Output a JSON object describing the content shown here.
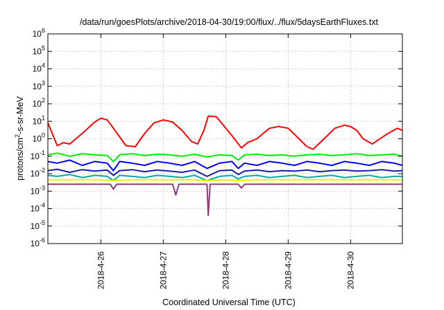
{
  "chart_data": {
    "type": "line",
    "title": "/data/run/goesPlots/archive/2018-04-30/19:00/flux/../flux/5daysEarthFluxes.txt",
    "xlabel": "Coordinated Universal Time (UTC)",
    "ylabel": {
      "prefix": "protons/cm",
      "superscript": "2",
      "suffix": "-s-sr-MeV"
    },
    "y_scale": "log",
    "ylim": [
      1e-06,
      1000000.0
    ],
    "y_ticks": [
      {
        "value": 1e-06,
        "base": "10",
        "exp": "-6"
      },
      {
        "value": 1e-05,
        "base": "10",
        "exp": "-5"
      },
      {
        "value": 0.0001,
        "base": "10",
        "exp": "-4"
      },
      {
        "value": 0.001,
        "base": "10",
        "exp": "-3"
      },
      {
        "value": 0.01,
        "base": "10",
        "exp": "-2"
      },
      {
        "value": 0.1,
        "base": "10",
        "exp": "-1"
      },
      {
        "value": 1,
        "base": "10",
        "exp": "0"
      },
      {
        "value": 10,
        "base": "10",
        "exp": "1"
      },
      {
        "value": 100,
        "base": "10",
        "exp": "2"
      },
      {
        "value": 1000,
        "base": "10",
        "exp": "3"
      },
      {
        "value": 10000,
        "base": "10",
        "exp": "4"
      },
      {
        "value": 100000,
        "base": "10",
        "exp": "5"
      },
      {
        "value": 1000000,
        "base": "10",
        "exp": "6"
      }
    ],
    "x_ticks": [
      "2018-4-26",
      "2018-4-27",
      "2018-4-28",
      "2018-4-29",
      "2018-4-30"
    ],
    "x_tick_days": [
      26,
      27,
      28,
      29,
      30
    ],
    "xlim_days": [
      25.15,
      30.83
    ],
    "grid": true,
    "legend": "none",
    "series": [
      {
        "color": "#ff0000",
        "x": [
          25.15,
          25.3,
          25.4,
          25.5,
          25.7,
          25.9,
          26.0,
          26.1,
          26.2,
          26.4,
          26.55,
          26.7,
          26.85,
          27.0,
          27.15,
          27.3,
          27.45,
          27.55,
          27.65,
          27.72,
          27.85,
          28.0,
          28.1,
          28.25,
          28.35,
          28.5,
          28.7,
          28.85,
          29.0,
          29.15,
          29.3,
          29.4,
          29.55,
          29.75,
          29.9,
          30.0,
          30.1,
          30.2,
          30.35,
          30.45,
          30.6,
          30.75,
          30.83
        ],
        "y": [
          8,
          0.4,
          0.6,
          0.5,
          2,
          9,
          15,
          12,
          4,
          0.4,
          0.35,
          2,
          8,
          12,
          9,
          3,
          0.7,
          0.5,
          3,
          20,
          18,
          4,
          1.5,
          0.3,
          0.6,
          1,
          4,
          5,
          4,
          1.2,
          0.35,
          0.25,
          0.8,
          4,
          6,
          5,
          3,
          1,
          0.5,
          0.9,
          2,
          4,
          3
        ]
      },
      {
        "color": "#00ee00",
        "x": [
          25.15,
          25.3,
          25.5,
          25.7,
          25.9,
          26.1,
          26.2,
          26.3,
          26.5,
          26.7,
          26.9,
          27.1,
          27.3,
          27.5,
          27.7,
          27.9,
          28.1,
          28.2,
          28.3,
          28.5,
          28.7,
          28.9,
          29.1,
          29.3,
          29.5,
          29.7,
          29.9,
          30.1,
          30.3,
          30.5,
          30.7,
          30.83
        ],
        "y": [
          0.12,
          0.15,
          0.1,
          0.14,
          0.12,
          0.11,
          0.05,
          0.12,
          0.14,
          0.11,
          0.13,
          0.12,
          0.1,
          0.13,
          0.09,
          0.12,
          0.11,
          0.06,
          0.12,
          0.13,
          0.11,
          0.12,
          0.1,
          0.12,
          0.13,
          0.11,
          0.12,
          0.14,
          0.11,
          0.12,
          0.13,
          0.1
        ]
      },
      {
        "color": "#0000ff",
        "x": [
          25.15,
          25.3,
          25.5,
          25.7,
          25.9,
          26.1,
          26.2,
          26.3,
          26.5,
          26.7,
          26.9,
          27.1,
          27.3,
          27.5,
          27.7,
          27.9,
          28.1,
          28.2,
          28.3,
          28.5,
          28.7,
          28.9,
          29.1,
          29.3,
          29.5,
          29.7,
          29.9,
          30.1,
          30.3,
          30.5,
          30.7,
          30.83
        ],
        "y": [
          0.05,
          0.04,
          0.06,
          0.03,
          0.05,
          0.04,
          0.015,
          0.05,
          0.04,
          0.03,
          0.05,
          0.04,
          0.03,
          0.05,
          0.02,
          0.04,
          0.05,
          0.02,
          0.04,
          0.03,
          0.05,
          0.04,
          0.03,
          0.05,
          0.04,
          0.03,
          0.05,
          0.04,
          0.03,
          0.05,
          0.04,
          0.03
        ]
      },
      {
        "color": "#1a1aaa",
        "x": [
          25.15,
          25.3,
          25.5,
          25.7,
          25.9,
          26.1,
          26.2,
          26.3,
          26.5,
          26.7,
          26.9,
          27.1,
          27.3,
          27.5,
          27.7,
          27.9,
          28.1,
          28.2,
          28.3,
          28.5,
          28.7,
          28.9,
          29.1,
          29.3,
          29.5,
          29.7,
          29.9,
          30.1,
          30.3,
          30.5,
          30.7,
          30.83
        ],
        "y": [
          0.015,
          0.018,
          0.012,
          0.017,
          0.014,
          0.016,
          0.008,
          0.015,
          0.017,
          0.013,
          0.016,
          0.014,
          0.012,
          0.016,
          0.007,
          0.015,
          0.016,
          0.009,
          0.014,
          0.016,
          0.013,
          0.015,
          0.014,
          0.016,
          0.013,
          0.015,
          0.016,
          0.014,
          0.015,
          0.017,
          0.014,
          0.015
        ]
      },
      {
        "color": "#00aaaa",
        "x": [
          25.15,
          25.3,
          25.5,
          25.7,
          25.9,
          26.1,
          26.2,
          26.3,
          26.5,
          26.7,
          26.9,
          27.1,
          27.3,
          27.5,
          27.7,
          27.9,
          28.1,
          28.2,
          28.3,
          28.5,
          28.7,
          28.9,
          29.1,
          29.3,
          29.5,
          29.7,
          29.9,
          30.1,
          30.3,
          30.5,
          30.7,
          30.83
        ],
        "y": [
          0.008,
          0.007,
          0.009,
          0.006,
          0.008,
          0.007,
          0.004,
          0.008,
          0.007,
          0.006,
          0.008,
          0.007,
          0.006,
          0.008,
          0.004,
          0.007,
          0.008,
          0.005,
          0.007,
          0.008,
          0.006,
          0.007,
          0.008,
          0.006,
          0.007,
          0.008,
          0.006,
          0.007,
          0.008,
          0.006,
          0.007,
          0.007
        ]
      },
      {
        "color": "#eeee00",
        "x": [
          25.15,
          25.5,
          26.0,
          26.2,
          26.5,
          27.0,
          27.5,
          27.7,
          28.0,
          28.2,
          28.5,
          29.0,
          29.5,
          30.0,
          30.5,
          30.83
        ],
        "y": [
          0.0045,
          0.0045,
          0.0045,
          0.004,
          0.0045,
          0.0045,
          0.0045,
          0.004,
          0.0045,
          0.004,
          0.0045,
          0.0045,
          0.0045,
          0.0045,
          0.0045,
          0.0045
        ]
      },
      {
        "color": "#8e3a7a",
        "x": [
          25.15,
          25.5,
          26.0,
          26.15,
          26.2,
          26.25,
          26.5,
          27.0,
          27.15,
          27.2,
          27.25,
          27.5,
          27.7,
          27.72,
          27.75,
          28.0,
          28.2,
          28.25,
          28.3,
          28.5,
          29.0,
          29.5,
          30.0,
          30.5,
          30.83
        ],
        "y": [
          0.0025,
          0.0025,
          0.0025,
          0.0025,
          0.0013,
          0.0025,
          0.0025,
          0.0025,
          0.0025,
          0.0006,
          0.0025,
          0.0025,
          0.0025,
          4e-05,
          0.0025,
          0.0025,
          0.0025,
          0.0015,
          0.0025,
          0.0025,
          0.0025,
          0.0025,
          0.0025,
          0.0025,
          0.0025
        ]
      }
    ]
  }
}
